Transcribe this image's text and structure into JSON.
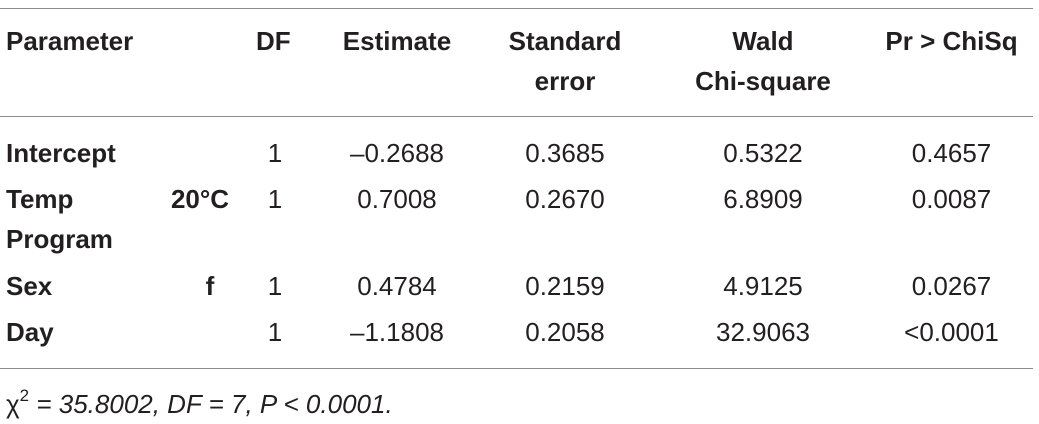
{
  "table": {
    "headers": {
      "parameter": "Parameter",
      "df": "DF",
      "estimate": "Estimate",
      "standard_error_line1": "Standard",
      "standard_error_line2": "error",
      "wald_line1": "Wald",
      "wald_line2": "Chi-square",
      "p": "Pr > ChiSq"
    },
    "rows": [
      {
        "parameter": "Intercept",
        "parameter_line2": "",
        "level": "",
        "df": "1",
        "estimate": "–0.2688",
        "standard_error": "0.3685",
        "wald": "0.5322",
        "p": "0.4657"
      },
      {
        "parameter": "Temp",
        "parameter_line2": "Program",
        "level": "20°C",
        "df": "1",
        "estimate": "0.7008",
        "standard_error": "0.2670",
        "wald": "6.8909",
        "p": "0.0087"
      },
      {
        "parameter": "Sex",
        "parameter_line2": "",
        "level": "f",
        "df": "1",
        "estimate": "0.4784",
        "standard_error": "0.2159",
        "wald": "4.9125",
        "p": "0.0267"
      },
      {
        "parameter": "Day",
        "parameter_line2": "",
        "level": "",
        "df": "1",
        "estimate": "–1.1808",
        "standard_error": "0.2058",
        "wald": "32.9063",
        "p": "<0.0001"
      }
    ]
  },
  "footnote": {
    "symbol": "χ",
    "superscript": "2",
    "text": " = 35.8002, DF = 7, P < 0.0001."
  }
}
